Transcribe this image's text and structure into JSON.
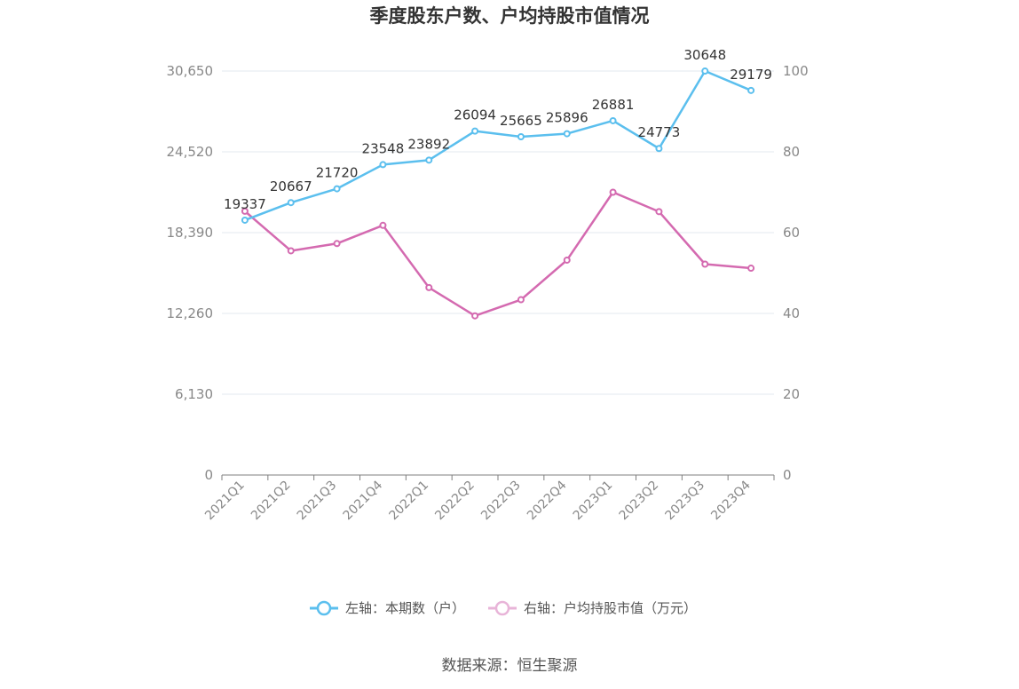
{
  "chart_data": {
    "type": "line",
    "title": "季度股东户数、户均持股市值情况",
    "categories": [
      "2021Q1",
      "2021Q2",
      "2021Q3",
      "2021Q4",
      "2022Q1",
      "2022Q2",
      "2022Q3",
      "2022Q4",
      "2023Q1",
      "2023Q2",
      "2023Q3",
      "2023Q4"
    ],
    "left_axis": {
      "min": 0,
      "max": 30650,
      "ticks": [
        "0",
        "6,130",
        "12,260",
        "18,390",
        "24,520",
        "30,650"
      ]
    },
    "right_axis": {
      "min": 0,
      "max": 100,
      "ticks": [
        "0",
        "20",
        "40",
        "60",
        "80",
        "100"
      ]
    },
    "series": [
      {
        "name": "左轴：本期数（户）",
        "axis": "left",
        "color": "#5bbfee",
        "values": [
          19337,
          20667,
          21720,
          23548,
          23892,
          26094,
          25665,
          25896,
          26881,
          24773,
          30648,
          29179
        ],
        "labels": [
          "19337",
          "20667",
          "21720",
          "23548",
          "23892",
          "26094",
          "25665",
          "25896",
          "26881",
          "24773",
          "30648",
          "29179"
        ]
      },
      {
        "name": "右轴：户均持股市值（万元）",
        "axis": "right",
        "color": "#d46ab0",
        "values": [
          65.3,
          55.5,
          57.3,
          61.8,
          46.4,
          39.4,
          43.4,
          53.2,
          70.0,
          65.2,
          52.2,
          51.2
        ]
      }
    ],
    "grid": true,
    "legend_position": "bottom"
  },
  "source": "数据来源：恒生聚源"
}
